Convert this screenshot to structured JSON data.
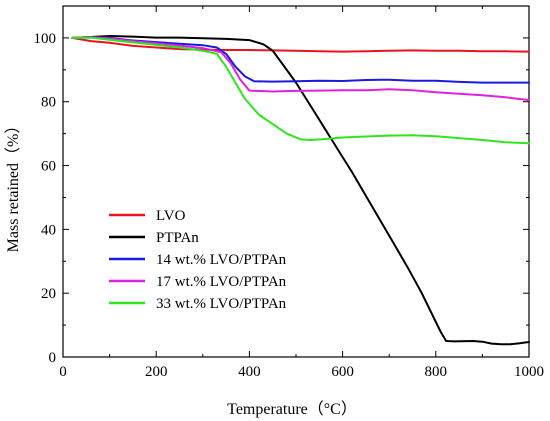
{
  "chart_data": {
    "type": "line",
    "title": "",
    "xlabel": "Temperature（°C）",
    "ylabel": "Mass retained（%）",
    "xlim": [
      0,
      1000
    ],
    "ylim": [
      0,
      110
    ],
    "x_ticks": [
      "0",
      "200",
      "400",
      "600",
      "800",
      "1000"
    ],
    "y_ticks": [
      "0",
      "20",
      "40",
      "60",
      "80",
      "100"
    ],
    "grid": false,
    "legend_position": "lower-left",
    "series": [
      {
        "name": "LVO",
        "color": "#e8141e",
        "points": [
          [
            20,
            100
          ],
          [
            60,
            99
          ],
          [
            100,
            98.5
          ],
          [
            150,
            97.5
          ],
          [
            200,
            97
          ],
          [
            250,
            96.5
          ],
          [
            300,
            96.3
          ],
          [
            350,
            96.2
          ],
          [
            400,
            96.2
          ],
          [
            450,
            96.1
          ],
          [
            500,
            96
          ],
          [
            550,
            95.8
          ],
          [
            600,
            95.7
          ],
          [
            650,
            95.8
          ],
          [
            700,
            96
          ],
          [
            750,
            96.1
          ],
          [
            800,
            96
          ],
          [
            850,
            96
          ],
          [
            900,
            95.8
          ],
          [
            950,
            95.8
          ],
          [
            1000,
            95.7
          ]
        ]
      },
      {
        "name": "PTPAn",
        "color": "#000000",
        "points": [
          [
            20,
            100
          ],
          [
            60,
            100.3
          ],
          [
            100,
            100.6
          ],
          [
            150,
            100.4
          ],
          [
            200,
            100.1
          ],
          [
            250,
            100.1
          ],
          [
            300,
            99.9
          ],
          [
            350,
            99.7
          ],
          [
            400,
            99.3
          ],
          [
            430,
            98
          ],
          [
            450,
            96
          ],
          [
            470,
            92
          ],
          [
            500,
            86
          ],
          [
            530,
            79
          ],
          [
            560,
            72
          ],
          [
            590,
            65
          ],
          [
            620,
            58
          ],
          [
            650,
            50.5
          ],
          [
            680,
            43
          ],
          [
            710,
            35.5
          ],
          [
            740,
            28
          ],
          [
            770,
            20
          ],
          [
            790,
            14
          ],
          [
            810,
            8
          ],
          [
            822,
            5
          ],
          [
            840,
            4.9
          ],
          [
            880,
            5
          ],
          [
            900,
            4.8
          ],
          [
            920,
            4.2
          ],
          [
            940,
            4
          ],
          [
            960,
            4
          ],
          [
            980,
            4.3
          ],
          [
            1000,
            4.7
          ]
        ]
      },
      {
        "name": "14 wt.% LVO/PTPAn",
        "color": "#1a1adc",
        "points": [
          [
            20,
            100
          ],
          [
            60,
            100.3
          ],
          [
            100,
            100
          ],
          [
            150,
            99.2
          ],
          [
            200,
            98.7
          ],
          [
            250,
            98.2
          ],
          [
            300,
            97.7
          ],
          [
            330,
            97
          ],
          [
            350,
            95
          ],
          [
            370,
            91
          ],
          [
            390,
            88
          ],
          [
            410,
            86.4
          ],
          [
            450,
            86.3
          ],
          [
            500,
            86.4
          ],
          [
            550,
            86.6
          ],
          [
            600,
            86.5
          ],
          [
            650,
            86.8
          ],
          [
            700,
            86.9
          ],
          [
            750,
            86.6
          ],
          [
            800,
            86.6
          ],
          [
            850,
            86.2
          ],
          [
            900,
            86
          ],
          [
            950,
            86
          ],
          [
            1000,
            86
          ]
        ]
      },
      {
        "name": "17 wt.% LVO/PTPAn",
        "color": "#e020e0",
        "points": [
          [
            20,
            100
          ],
          [
            60,
            100.2
          ],
          [
            100,
            99.8
          ],
          [
            150,
            99
          ],
          [
            200,
            98.3
          ],
          [
            250,
            97.6
          ],
          [
            300,
            96.8
          ],
          [
            340,
            95.5
          ],
          [
            360,
            92
          ],
          [
            380,
            87
          ],
          [
            400,
            83.5
          ],
          [
            450,
            83.2
          ],
          [
            500,
            83.4
          ],
          [
            550,
            83.5
          ],
          [
            600,
            83.6
          ],
          [
            650,
            83.6
          ],
          [
            700,
            83.9
          ],
          [
            750,
            83.6
          ],
          [
            800,
            83
          ],
          [
            850,
            82.5
          ],
          [
            900,
            82
          ],
          [
            950,
            81.4
          ],
          [
            1000,
            80.5
          ]
        ]
      },
      {
        "name": "33 wt.% LVO/PTPAn",
        "color": "#2ee61e",
        "points": [
          [
            20,
            100
          ],
          [
            60,
            100.1
          ],
          [
            100,
            99.4
          ],
          [
            150,
            98.6
          ],
          [
            200,
            97.8
          ],
          [
            250,
            97
          ],
          [
            300,
            96
          ],
          [
            330,
            95
          ],
          [
            350,
            91
          ],
          [
            370,
            86
          ],
          [
            390,
            81
          ],
          [
            420,
            76
          ],
          [
            450,
            73
          ],
          [
            480,
            70
          ],
          [
            510,
            68.2
          ],
          [
            530,
            68
          ],
          [
            560,
            68.3
          ],
          [
            600,
            68.8
          ],
          [
            650,
            69.1
          ],
          [
            700,
            69.4
          ],
          [
            750,
            69.5
          ],
          [
            800,
            69.2
          ],
          [
            850,
            68.6
          ],
          [
            900,
            68
          ],
          [
            950,
            67.3
          ],
          [
            1000,
            67
          ]
        ]
      }
    ]
  }
}
